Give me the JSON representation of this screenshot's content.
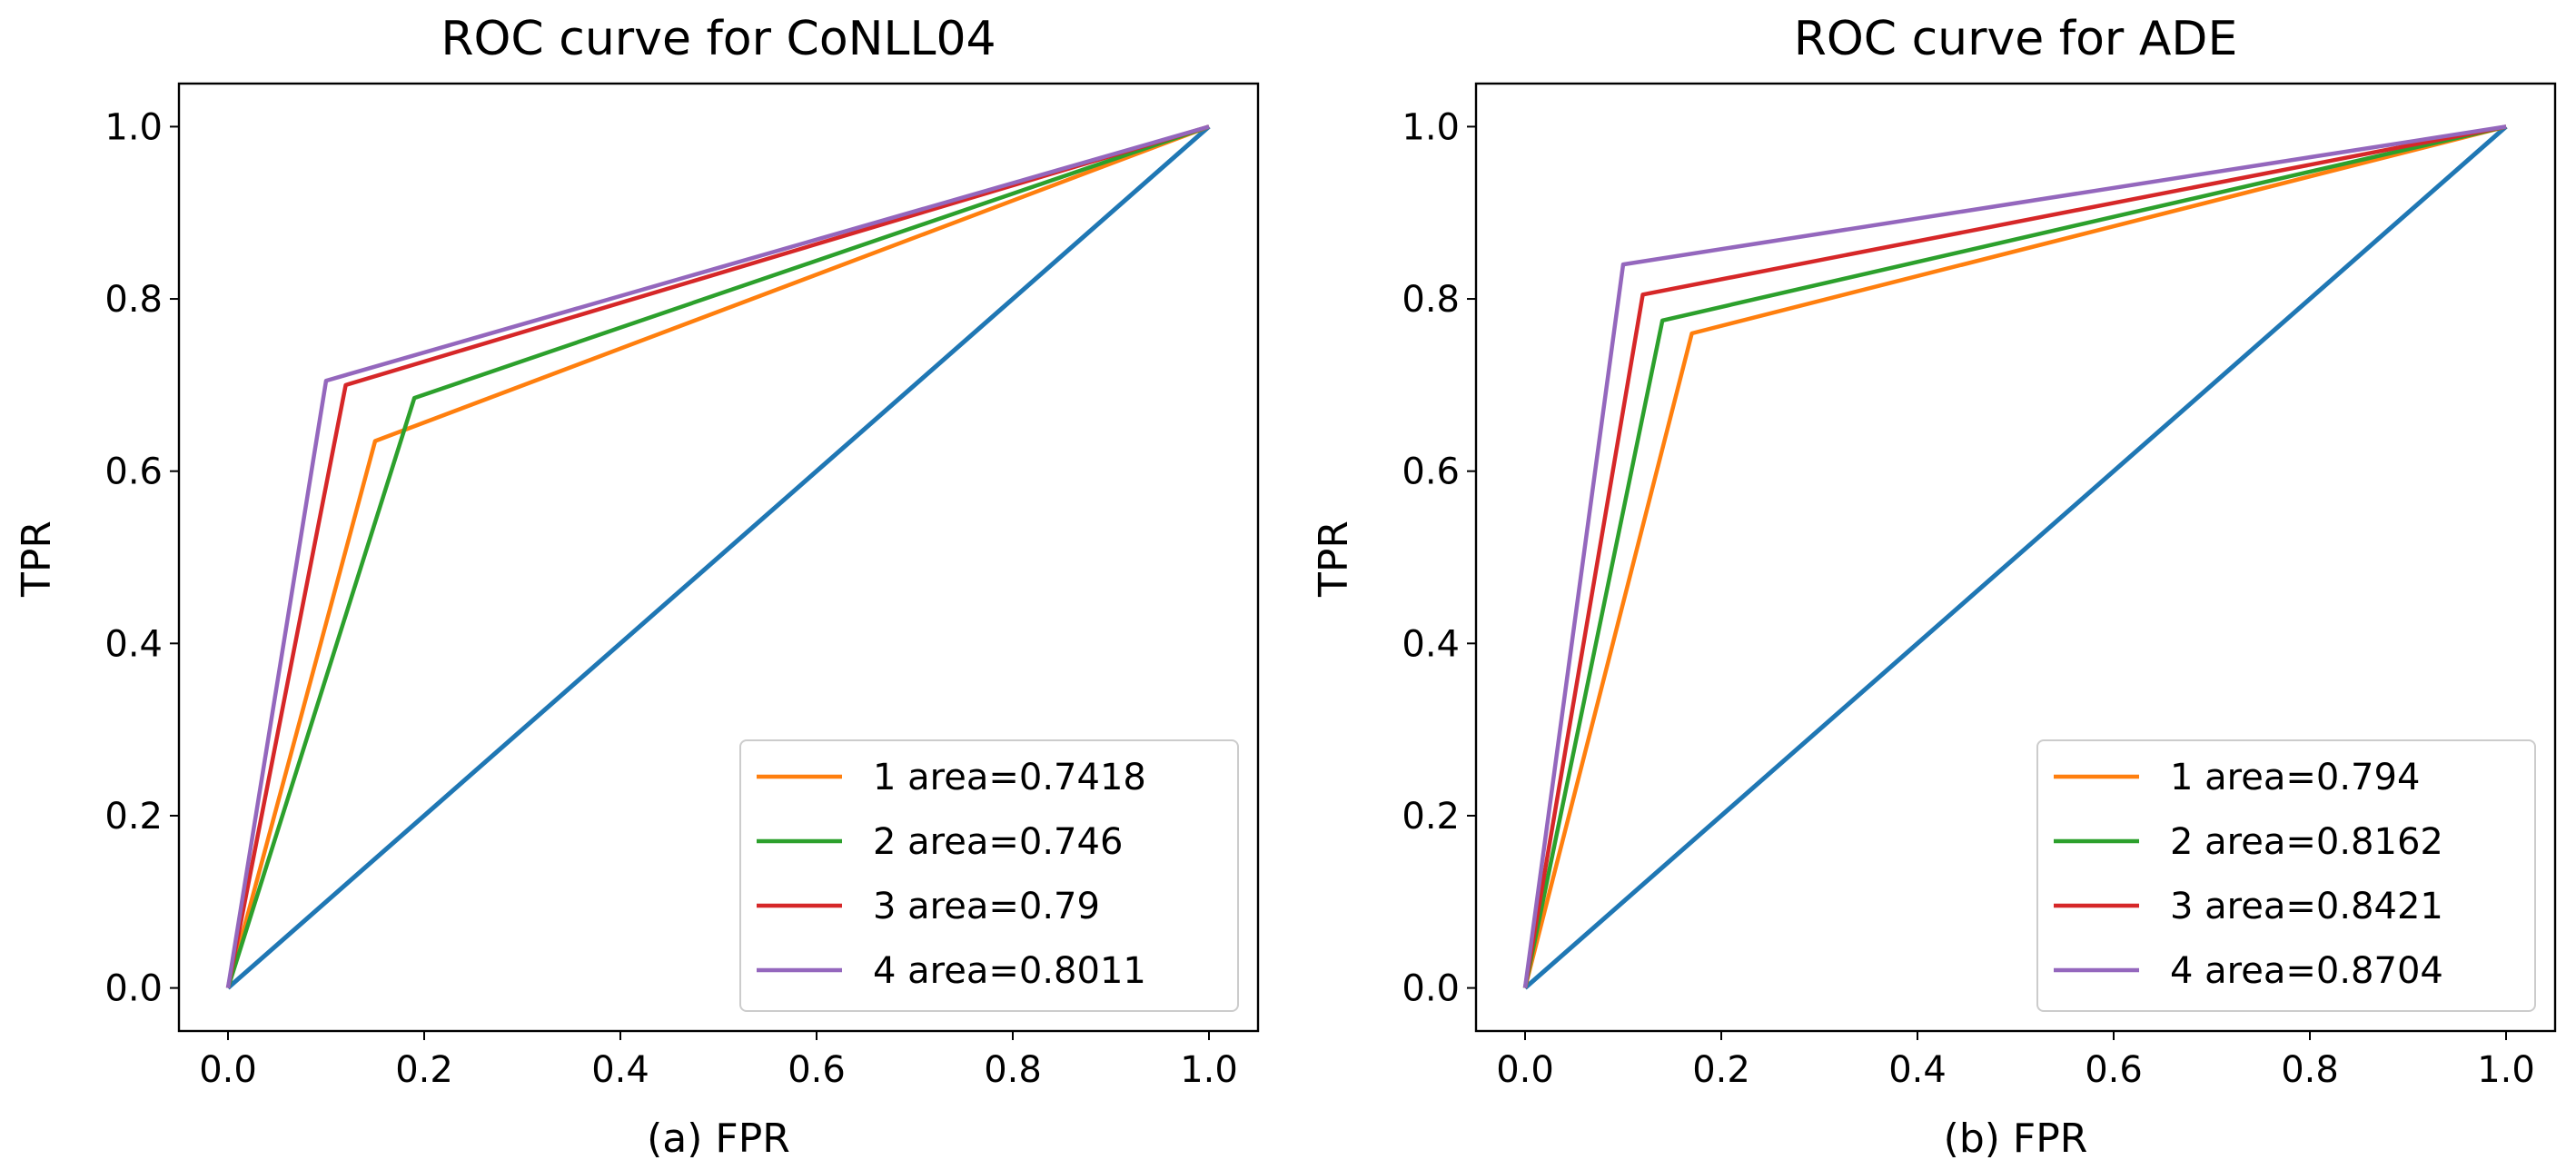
{
  "chart_data": [
    {
      "type": "line",
      "title": "ROC curve for CoNLL04",
      "xlabel": "(a) FPR",
      "ylabel": "TPR",
      "xlim": [
        -0.05,
        1.05
      ],
      "ylim": [
        -0.05,
        1.05
      ],
      "xticks": [
        "0.0",
        "0.2",
        "0.4",
        "0.6",
        "0.8",
        "1.0"
      ],
      "yticks": [
        "0.0",
        "0.2",
        "0.4",
        "0.6",
        "0.8",
        "1.0"
      ],
      "legend_position": "lower-right",
      "series": [
        {
          "name": "baseline",
          "color": "#1f77b4",
          "in_legend": false,
          "x": [
            0,
            1
          ],
          "y": [
            0,
            1
          ]
        },
        {
          "name": "1 area=0.7418",
          "color": "#ff7f0e",
          "in_legend": true,
          "x": [
            0,
            0.15,
            1
          ],
          "y": [
            0,
            0.635,
            1
          ]
        },
        {
          "name": "2 area=0.746",
          "color": "#2ca02c",
          "in_legend": true,
          "x": [
            0,
            0.19,
            1
          ],
          "y": [
            0,
            0.685,
            1
          ]
        },
        {
          "name": "3 area=0.79",
          "color": "#d62728",
          "in_legend": true,
          "x": [
            0,
            0.12,
            1
          ],
          "y": [
            0,
            0.7,
            1
          ]
        },
        {
          "name": "4 area=0.8011",
          "color": "#9467bd",
          "in_legend": true,
          "x": [
            0,
            0.1,
            1
          ],
          "y": [
            0,
            0.705,
            1
          ]
        }
      ]
    },
    {
      "type": "line",
      "title": "ROC curve for ADE",
      "xlabel": "(b) FPR",
      "ylabel": "TPR",
      "xlim": [
        -0.05,
        1.05
      ],
      "ylim": [
        -0.05,
        1.05
      ],
      "xticks": [
        "0.0",
        "0.2",
        "0.4",
        "0.6",
        "0.8",
        "1.0"
      ],
      "yticks": [
        "0.0",
        "0.2",
        "0.4",
        "0.6",
        "0.8",
        "1.0"
      ],
      "legend_position": "lower-right",
      "series": [
        {
          "name": "baseline",
          "color": "#1f77b4",
          "in_legend": false,
          "x": [
            0,
            1
          ],
          "y": [
            0,
            1
          ]
        },
        {
          "name": "1 area=0.794",
          "color": "#ff7f0e",
          "in_legend": true,
          "x": [
            0,
            0.17,
            1
          ],
          "y": [
            0,
            0.76,
            1
          ]
        },
        {
          "name": "2 area=0.8162",
          "color": "#2ca02c",
          "in_legend": true,
          "x": [
            0,
            0.14,
            1
          ],
          "y": [
            0,
            0.775,
            1
          ]
        },
        {
          "name": "3 area=0.8421",
          "color": "#d62728",
          "in_legend": true,
          "x": [
            0,
            0.12,
            1
          ],
          "y": [
            0,
            0.805,
            1
          ]
        },
        {
          "name": "4 area=0.8704",
          "color": "#9467bd",
          "in_legend": true,
          "x": [
            0,
            0.1,
            1
          ],
          "y": [
            0,
            0.84,
            1
          ]
        }
      ]
    }
  ]
}
